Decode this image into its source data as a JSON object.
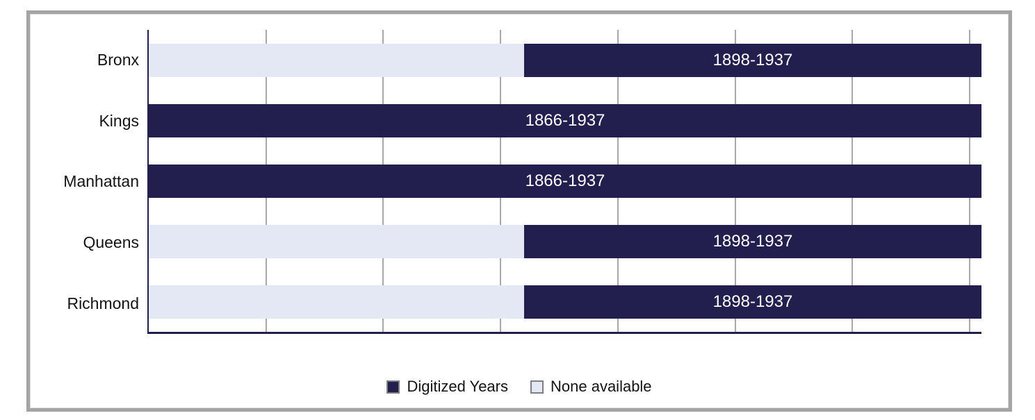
{
  "chart_data": {
    "type": "bar",
    "orientation": "horizontal",
    "stacked": true,
    "title": "",
    "categories": [
      "Bronx",
      "Kings",
      "Manhattan",
      "Queens",
      "Richmond"
    ],
    "x_axis": {
      "min": 1866,
      "max": 1937,
      "gridlines": [
        1876,
        1886,
        1896,
        1906,
        1916,
        1926,
        1936
      ],
      "tick_labels_visible": false,
      "grid": true
    },
    "series": [
      {
        "name": "None available",
        "color_key": "none",
        "spans": [
          [
            1866,
            1898
          ],
          null,
          null,
          [
            1866,
            1898
          ],
          [
            1866,
            1898
          ]
        ]
      },
      {
        "name": "Digitized Years",
        "color_key": "digitized",
        "spans": [
          [
            1898,
            1937
          ],
          [
            1866,
            1937
          ],
          [
            1866,
            1937
          ],
          [
            1898,
            1937
          ],
          [
            1898,
            1937
          ]
        ]
      }
    ],
    "bar_labels": [
      "1898-1937",
      "1866-1937",
      "1866-1937",
      "1898-1937",
      "1898-1937"
    ],
    "legend": {
      "position": "bottom-center",
      "entries": [
        {
          "label": "Digitized Years",
          "color_key": "digitized"
        },
        {
          "label": "None available",
          "color_key": "none"
        }
      ]
    },
    "colors": {
      "digitized": "#221e4e",
      "none": "#e4e8f4",
      "axis": "#221e4e",
      "gridline": "#a9a9a9",
      "frame_border": "#a4a4a4",
      "bar_label_text": "#ffffff",
      "category_label_text": "#141414"
    }
  }
}
